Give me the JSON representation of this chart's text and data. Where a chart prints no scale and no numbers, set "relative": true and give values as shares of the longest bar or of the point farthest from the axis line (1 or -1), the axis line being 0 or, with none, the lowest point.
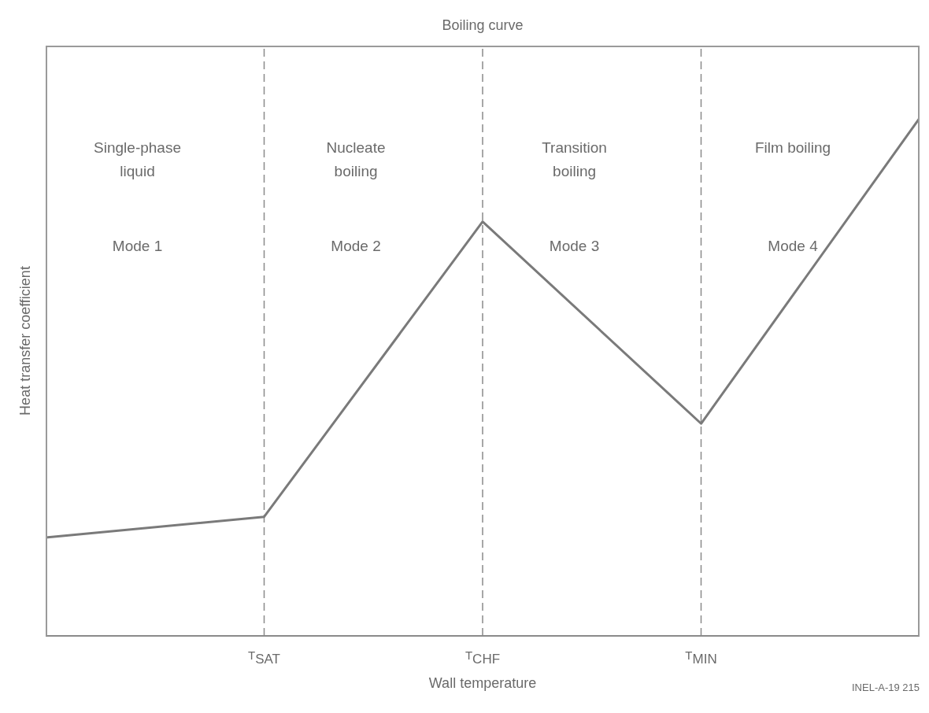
{
  "chart_data": {
    "type": "line",
    "title": "Boiling curve",
    "xlabel": "Wall temperature",
    "ylabel": "Heat transfer coefficient",
    "relative": true,
    "categories": [
      null,
      "T$_{SAT}$",
      "T$_{CHF}$",
      "T$_{MIN}$",
      null
    ],
    "series": [
      {
        "color": "#7a7a7a",
        "values": [
          0.19,
          0.23,
          0.8,
          0.41,
          1
        ]
      }
    ],
    "marker": "none",
    "line_style": "solid",
    "ref_lines": [
      {
        "axis": "x",
        "value": "T$_{SAT}$",
        "line_style": "dashed",
        "color": "#8a8a8a"
      },
      {
        "axis": "x",
        "value": "T$_{CHF}$",
        "line_style": "dashed",
        "color": "#8a8a8a"
      },
      {
        "axis": "x",
        "value": "T$_{MIN}$",
        "line_style": "dashed",
        "color": "#8a8a8a"
      }
    ],
    "annotations": [
      "Single-phase liquid",
      "Mode 1",
      "Nucleate boiling",
      "Mode 2",
      "Transition boiling",
      "Mode 3",
      "Film boiling",
      "Mode 4",
      "INEL-A-19 215"
    ]
  }
}
